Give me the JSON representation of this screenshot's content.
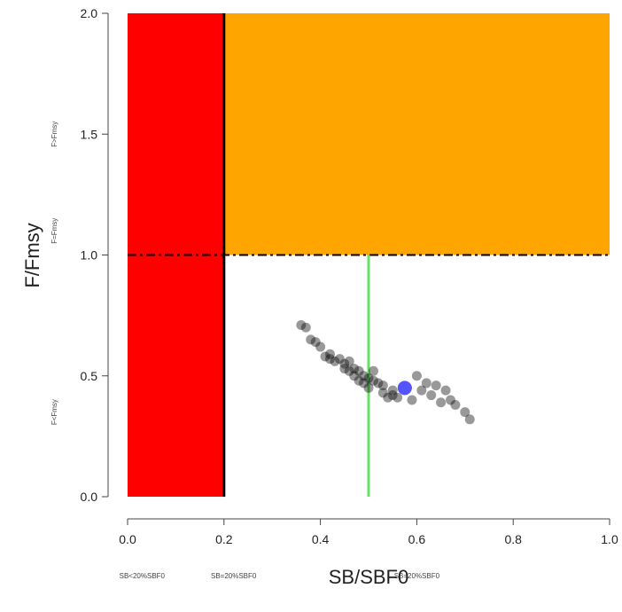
{
  "chart_data": {
    "type": "scatter",
    "title": "",
    "xlabel": "SB/SBF0",
    "ylabel": "F/Fmsy",
    "xlim": [
      0.0,
      1.0
    ],
    "ylim": [
      0.0,
      2.0
    ],
    "x_ticks": [
      0.0,
      0.2,
      0.4,
      0.6,
      0.8,
      1.0
    ],
    "y_ticks": [
      0.0,
      0.5,
      1.0,
      1.5,
      2.0
    ],
    "x_tick_labels": [
      "0.0",
      "0.2",
      "0.4",
      "0.6",
      "0.8",
      "1.0"
    ],
    "y_tick_labels": [
      "0.0",
      "0.5",
      "1.0",
      "1.5",
      "2.0"
    ],
    "regions": [
      {
        "name": "red",
        "color": "#FF0000",
        "x": [
          0.0,
          0.2
        ],
        "y": [
          0.0,
          2.0
        ]
      },
      {
        "name": "orange",
        "color": "#FFA500",
        "x": [
          0.2,
          1.0
        ],
        "y": [
          1.0,
          2.0
        ]
      }
    ],
    "reference_lines": [
      {
        "orientation": "vertical",
        "value": 0.2,
        "y_range": [
          0.0,
          2.0
        ],
        "color": "#000000",
        "style": "solid"
      },
      {
        "orientation": "horizontal",
        "value": 1.0,
        "x_range": [
          0.0,
          1.0
        ],
        "color": "#000000",
        "style": "dashdot"
      },
      {
        "orientation": "vertical",
        "value": 0.5,
        "y_range": [
          0.0,
          1.0
        ],
        "color": "#66E066",
        "style": "solid"
      }
    ],
    "x_annotations": [
      {
        "text": "SB<20%SBF0",
        "x": 0.03
      },
      {
        "text": "SB=20%SBF0",
        "x": 0.22
      },
      {
        "text": "SB=20%SBF0",
        "x": 0.6
      }
    ],
    "y_annotations": [
      {
        "text": "F>Fmsy",
        "y": 1.5
      },
      {
        "text": "F=Fmsy",
        "y": 1.1
      },
      {
        "text": "F<Fmsy",
        "y": 0.35
      }
    ],
    "series": [
      {
        "color": "#000000",
        "alpha": 0.4,
        "x": [
          0.36,
          0.37,
          0.38,
          0.39,
          0.4,
          0.41,
          0.42,
          0.42,
          0.43,
          0.44,
          0.45,
          0.45,
          0.46,
          0.46,
          0.47,
          0.47,
          0.48,
          0.48,
          0.49,
          0.49,
          0.5,
          0.5,
          0.51,
          0.51,
          0.52,
          0.53,
          0.53,
          0.54,
          0.55,
          0.55,
          0.56,
          0.58,
          0.59,
          0.6,
          0.61,
          0.62,
          0.63,
          0.64,
          0.65,
          0.66,
          0.67,
          0.68,
          0.7,
          0.71
        ],
        "y": [
          0.71,
          0.7,
          0.65,
          0.64,
          0.62,
          0.58,
          0.57,
          0.59,
          0.56,
          0.57,
          0.55,
          0.53,
          0.52,
          0.56,
          0.5,
          0.53,
          0.48,
          0.52,
          0.47,
          0.5,
          0.45,
          0.49,
          0.48,
          0.52,
          0.47,
          0.43,
          0.46,
          0.41,
          0.44,
          0.42,
          0.41,
          0.45,
          0.4,
          0.5,
          0.44,
          0.47,
          0.42,
          0.46,
          0.39,
          0.44,
          0.4,
          0.38,
          0.35,
          0.32
        ]
      },
      {
        "color": "#5555FF",
        "alpha": 1.0,
        "x": [
          0.575
        ],
        "y": [
          0.45
        ]
      }
    ]
  }
}
